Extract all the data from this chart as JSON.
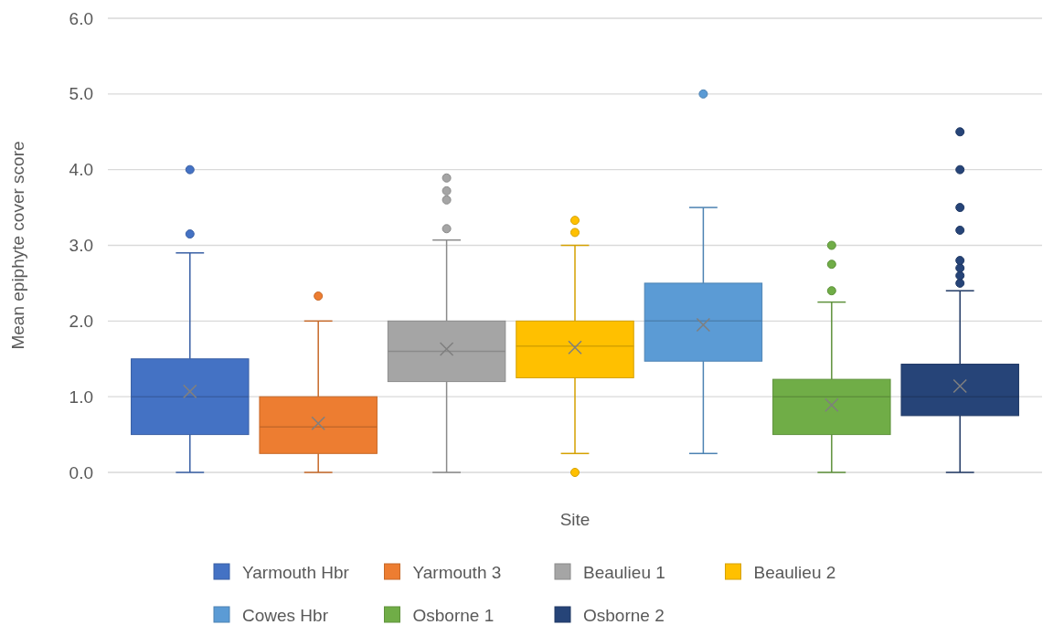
{
  "chart_data": {
    "type": "box",
    "xlabel": "Site",
    "ylabel": "Mean epiphyte cover score",
    "categories": [
      null
    ],
    "ylim": [
      0,
      6
    ],
    "yticks": [
      {
        "value": 0,
        "label": "0.0"
      },
      {
        "value": 1,
        "label": "1.0"
      },
      {
        "value": 2,
        "label": "2.0"
      },
      {
        "value": 3,
        "label": "3.0"
      },
      {
        "value": 4,
        "label": "4.0"
      },
      {
        "value": 5,
        "label": "5.0"
      },
      {
        "value": 6,
        "label": "6.0"
      }
    ],
    "grid": "y",
    "legend": "bottom",
    "marker": "cross",
    "series": [
      {
        "name": "Yarmouth Hbr",
        "color": "#4472c4",
        "boxes": [
          {
            "low": 0,
            "q1": 0.5,
            "median": 1.0,
            "q3": 1.5,
            "high": 2.9,
            "mean": 1.07,
            "outliers": [
              3.15,
              4.0
            ]
          }
        ]
      },
      {
        "name": "Yarmouth 3",
        "color": "#ed7d31",
        "boxes": [
          {
            "low": 0,
            "q1": 0.25,
            "median": 0.6,
            "q3": 1.0,
            "high": 2.0,
            "mean": 0.65,
            "outliers": [
              2.33
            ]
          }
        ]
      },
      {
        "name": "Beaulieu 1",
        "color": "#a5a5a5",
        "boxes": [
          {
            "low": 0,
            "q1": 1.2,
            "median": 1.6,
            "q3": 2.0,
            "high": 3.07,
            "mean": 1.63,
            "outliers": [
              3.22,
              3.6,
              3.72,
              3.89
            ]
          }
        ]
      },
      {
        "name": "Beaulieu 2",
        "color": "#ffc000",
        "boxes": [
          {
            "low": 0.25,
            "q1": 1.25,
            "median": 1.67,
            "q3": 2.0,
            "high": 3.0,
            "mean": 1.65,
            "outliers": [
              0,
              3.17,
              3.33
            ]
          }
        ]
      },
      {
        "name": "Cowes Hbr",
        "color": "#5b9bd5",
        "boxes": [
          {
            "low": 0.25,
            "q1": 1.47,
            "median": 2.0,
            "q3": 2.5,
            "high": 3.5,
            "mean": 1.95,
            "outliers": [
              5.0
            ]
          }
        ]
      },
      {
        "name": "Osborne 1",
        "color": "#70ad47",
        "boxes": [
          {
            "low": 0,
            "q1": 0.5,
            "median": 1.0,
            "q3": 1.23,
            "high": 2.25,
            "mean": 0.89,
            "outliers": [
              2.4,
              2.75,
              3.0
            ]
          }
        ]
      },
      {
        "name": "Osborne 2",
        "color": "#264478",
        "boxes": [
          {
            "low": 0,
            "q1": 0.75,
            "median": 1.0,
            "q3": 1.43,
            "high": 2.4,
            "mean": 1.14,
            "outliers": [
              2.5,
              2.6,
              2.7,
              2.8,
              3.2,
              3.5,
              4.0,
              4.5
            ]
          }
        ]
      }
    ]
  }
}
